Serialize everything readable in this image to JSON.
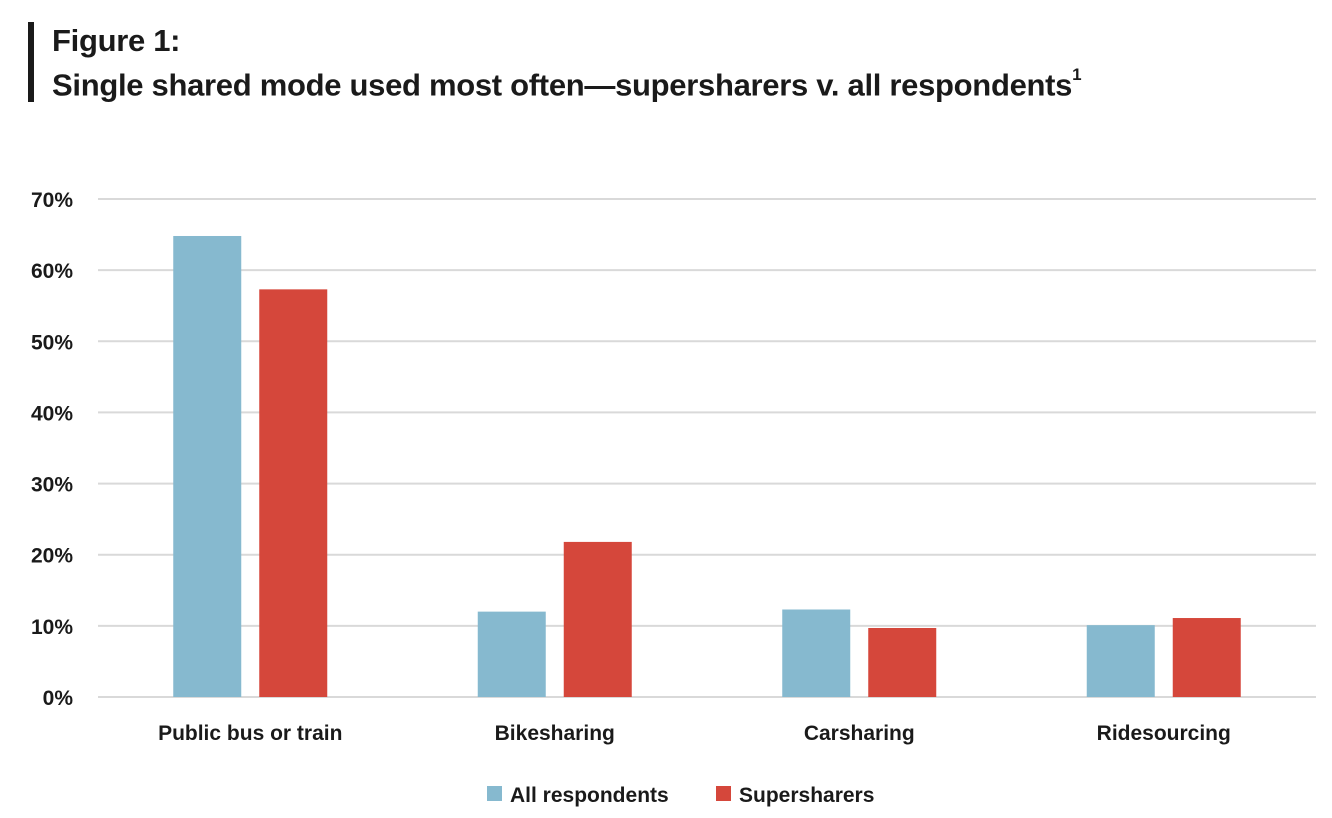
{
  "figure": {
    "label": "Figure 1:",
    "title": "Single shared mode used most often—supersharers v. all respondents",
    "footnote_marker": "1"
  },
  "colors": {
    "all_respondents": "#86b9cf",
    "supersharers": "#d5473b",
    "grid": "#d9d9d9"
  },
  "chart_data": {
    "type": "bar",
    "categories": [
      "Public bus or train",
      "Bikesharing",
      "Carsharing",
      "Ridesourcing"
    ],
    "series": [
      {
        "name": "All respondents",
        "values": [
          64.8,
          12.0,
          12.3,
          10.1
        ]
      },
      {
        "name": "Supersharers",
        "values": [
          57.3,
          21.8,
          9.7,
          11.1
        ]
      }
    ],
    "ylim": [
      0,
      70
    ],
    "yticks": [
      0,
      10,
      20,
      30,
      40,
      50,
      60,
      70
    ],
    "ytick_labels": [
      "0%",
      "10%",
      "20%",
      "30%",
      "40%",
      "50%",
      "60%",
      "70%"
    ],
    "grid": true,
    "legend": "bottom-center"
  }
}
